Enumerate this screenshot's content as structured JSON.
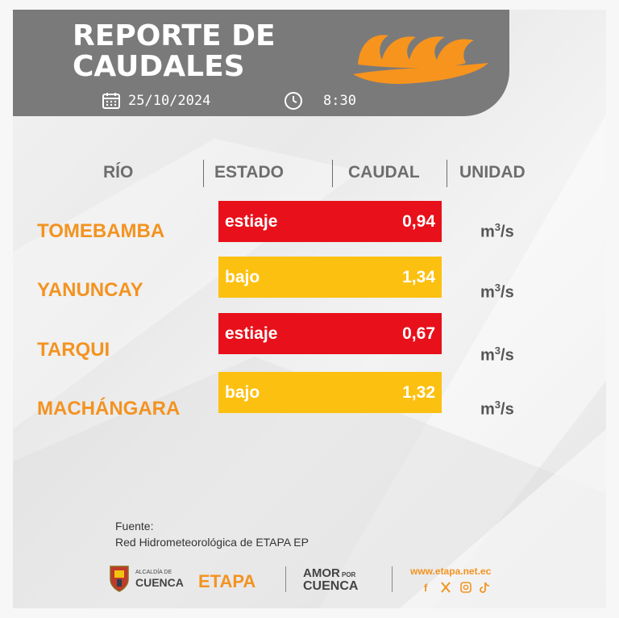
{
  "header": {
    "title_line1": "REPORTE DE",
    "title_line2": "CAUDALES",
    "date": "25/10/2024",
    "time": "8:30"
  },
  "table": {
    "headers": [
      "RÍO",
      "ESTADO",
      "CAUDAL",
      "UNIDAD"
    ],
    "rows": [
      {
        "river": "TOMEBAMBA",
        "status": "estiaje",
        "flow": "0,94",
        "unit": "m",
        "unit_exp": "3",
        "unit_tail": "/s"
      },
      {
        "river": "YANUNCAY",
        "status": "bajo",
        "flow": "1,34",
        "unit": "m",
        "unit_exp": "3",
        "unit_tail": "/s"
      },
      {
        "river": "TARQUI",
        "status": "estiaje",
        "flow": "0,67",
        "unit": "m",
        "unit_exp": "3",
        "unit_tail": "/s"
      },
      {
        "river": "MACHÁNGARA",
        "status": "bajo",
        "flow": "1,32",
        "unit": "m",
        "unit_exp": "3",
        "unit_tail": "/s"
      }
    ]
  },
  "source": {
    "label": "Fuente:",
    "text": "Red Hidrometeorológica de ETAPA EP"
  },
  "footer": {
    "cuenca_small": "ALCALDÍA DE",
    "cuenca": "CUENCA",
    "etapa": "ETAPA",
    "amor": "AMOR",
    "por": "POR",
    "amor_cuenca": "CUENCA",
    "website": "www.etapa.net.ec"
  },
  "colors": {
    "header_gray": "#7a7a7b",
    "orange": "#f39320",
    "estiaje_red": "#e8101a",
    "bajo_yellow": "#fcc010"
  }
}
